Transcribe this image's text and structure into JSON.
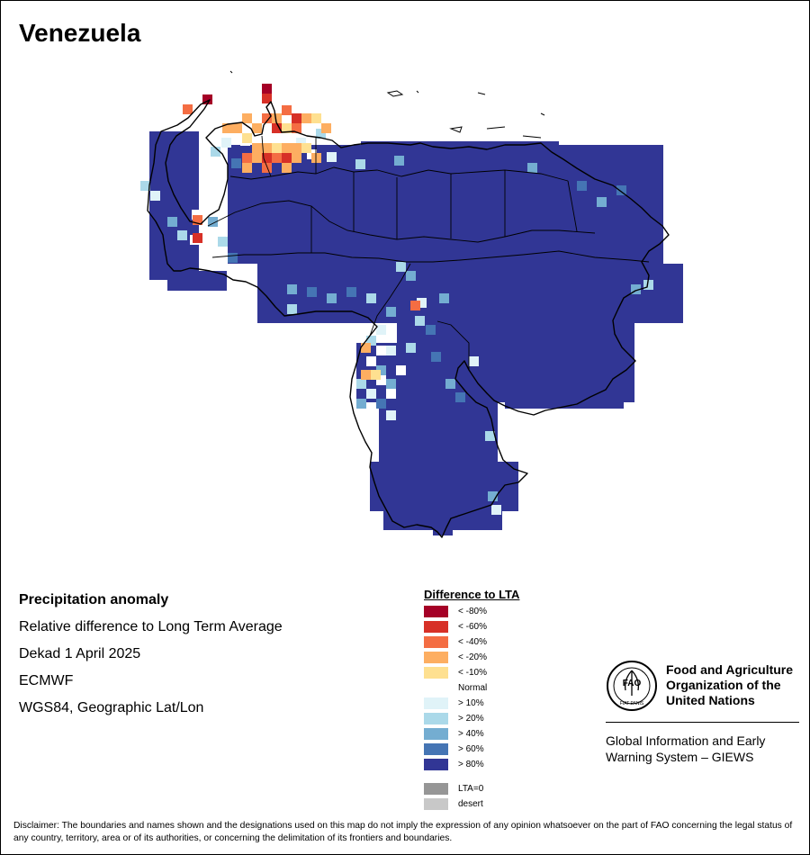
{
  "title": "Venezuela",
  "info": {
    "heading": "Precipitation anomaly",
    "line1": "Relative difference to Long Term Average",
    "line2": "Dekad 1 April 2025",
    "line3": "ECMWF",
    "line4": "WGS84, Geographic Lat/Lon"
  },
  "legend": {
    "title": "Difference to LTA",
    "items": [
      {
        "label": "< -80%",
        "color": "#a50026"
      },
      {
        "label": "< -60%",
        "color": "#d73027"
      },
      {
        "label": "< -40%",
        "color": "#f46d43"
      },
      {
        "label": "< -20%",
        "color": "#fdae61"
      },
      {
        "label": "< -10%",
        "color": "#fee090"
      },
      {
        "label": "Normal",
        "color": "#ffffff"
      },
      {
        "label": "> 10%",
        "color": "#e0f3f8"
      },
      {
        "label": "> 20%",
        "color": "#abd9e9"
      },
      {
        "label": "> 40%",
        "color": "#74add1"
      },
      {
        "label": "> 60%",
        "color": "#4575b4"
      },
      {
        "label": "> 80%",
        "color": "#313695"
      },
      {
        "label": "LTA=0",
        "color": "#969696"
      },
      {
        "label": "desert",
        "color": "#c8c8c8"
      }
    ]
  },
  "branding": {
    "org_name": "Food and Agriculture\nOrganization of the\nUnited Nations",
    "emblem_text": "FAO",
    "emblem_motto": "FIAT PANIS",
    "system_name": "Global Information and Early\nWarning System – GIEWS"
  },
  "disclaimer": "Disclaimer: The boundaries and names shown and the designations used on this map do not imply the expression of any opinion whatsoever on the part of FAO concerning the legal status of any country, territory, area or of its authorities, or concerning the delimitation of its frontiers and boundaries."
}
